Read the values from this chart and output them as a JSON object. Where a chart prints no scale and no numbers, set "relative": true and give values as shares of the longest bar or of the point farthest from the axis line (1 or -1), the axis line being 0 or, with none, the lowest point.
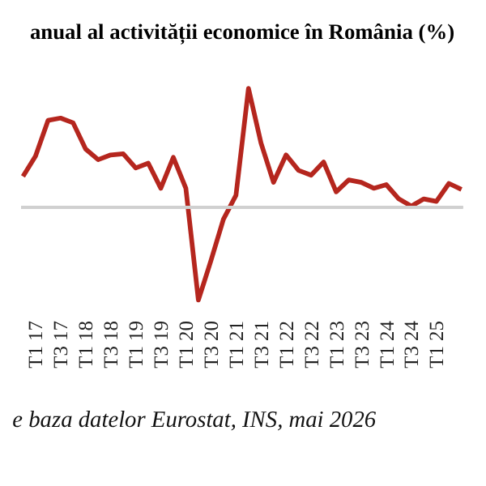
{
  "chart_data": {
    "type": "line",
    "title": "anual al activității economice în România (%)",
    "relative": true,
    "color": "#b5261e",
    "categories": [
      null,
      "T1 17",
      null,
      "T3 17",
      null,
      "T1 18",
      null,
      "T3 18",
      null,
      "T1 19",
      null,
      "T3 19",
      null,
      "T1 20",
      null,
      "T3 20",
      null,
      "T1 21",
      null,
      "T3 21",
      null,
      "T1 22",
      null,
      "T3 22",
      null,
      "T1 23",
      null,
      "T3 23",
      null,
      "T1 24",
      null,
      "T3 24",
      null,
      "T1 25",
      null,
      null
    ],
    "values": [
      0.26,
      0.43,
      0.73,
      0.75,
      0.71,
      0.49,
      0.4,
      0.44,
      0.45,
      0.33,
      0.37,
      0.16,
      0.42,
      0.16,
      -0.78,
      -0.45,
      -0.1,
      0.1,
      1,
      0.54,
      0.21,
      0.44,
      0.31,
      0.27,
      0.38,
      0.13,
      0.23,
      0.21,
      0.16,
      0.19,
      0.07,
      0.01,
      0.07,
      0.05,
      0.2,
      0.15
    ],
    "annotations": [
      "e baza datelor Eurostat, INS, mai 2026"
    ]
  }
}
